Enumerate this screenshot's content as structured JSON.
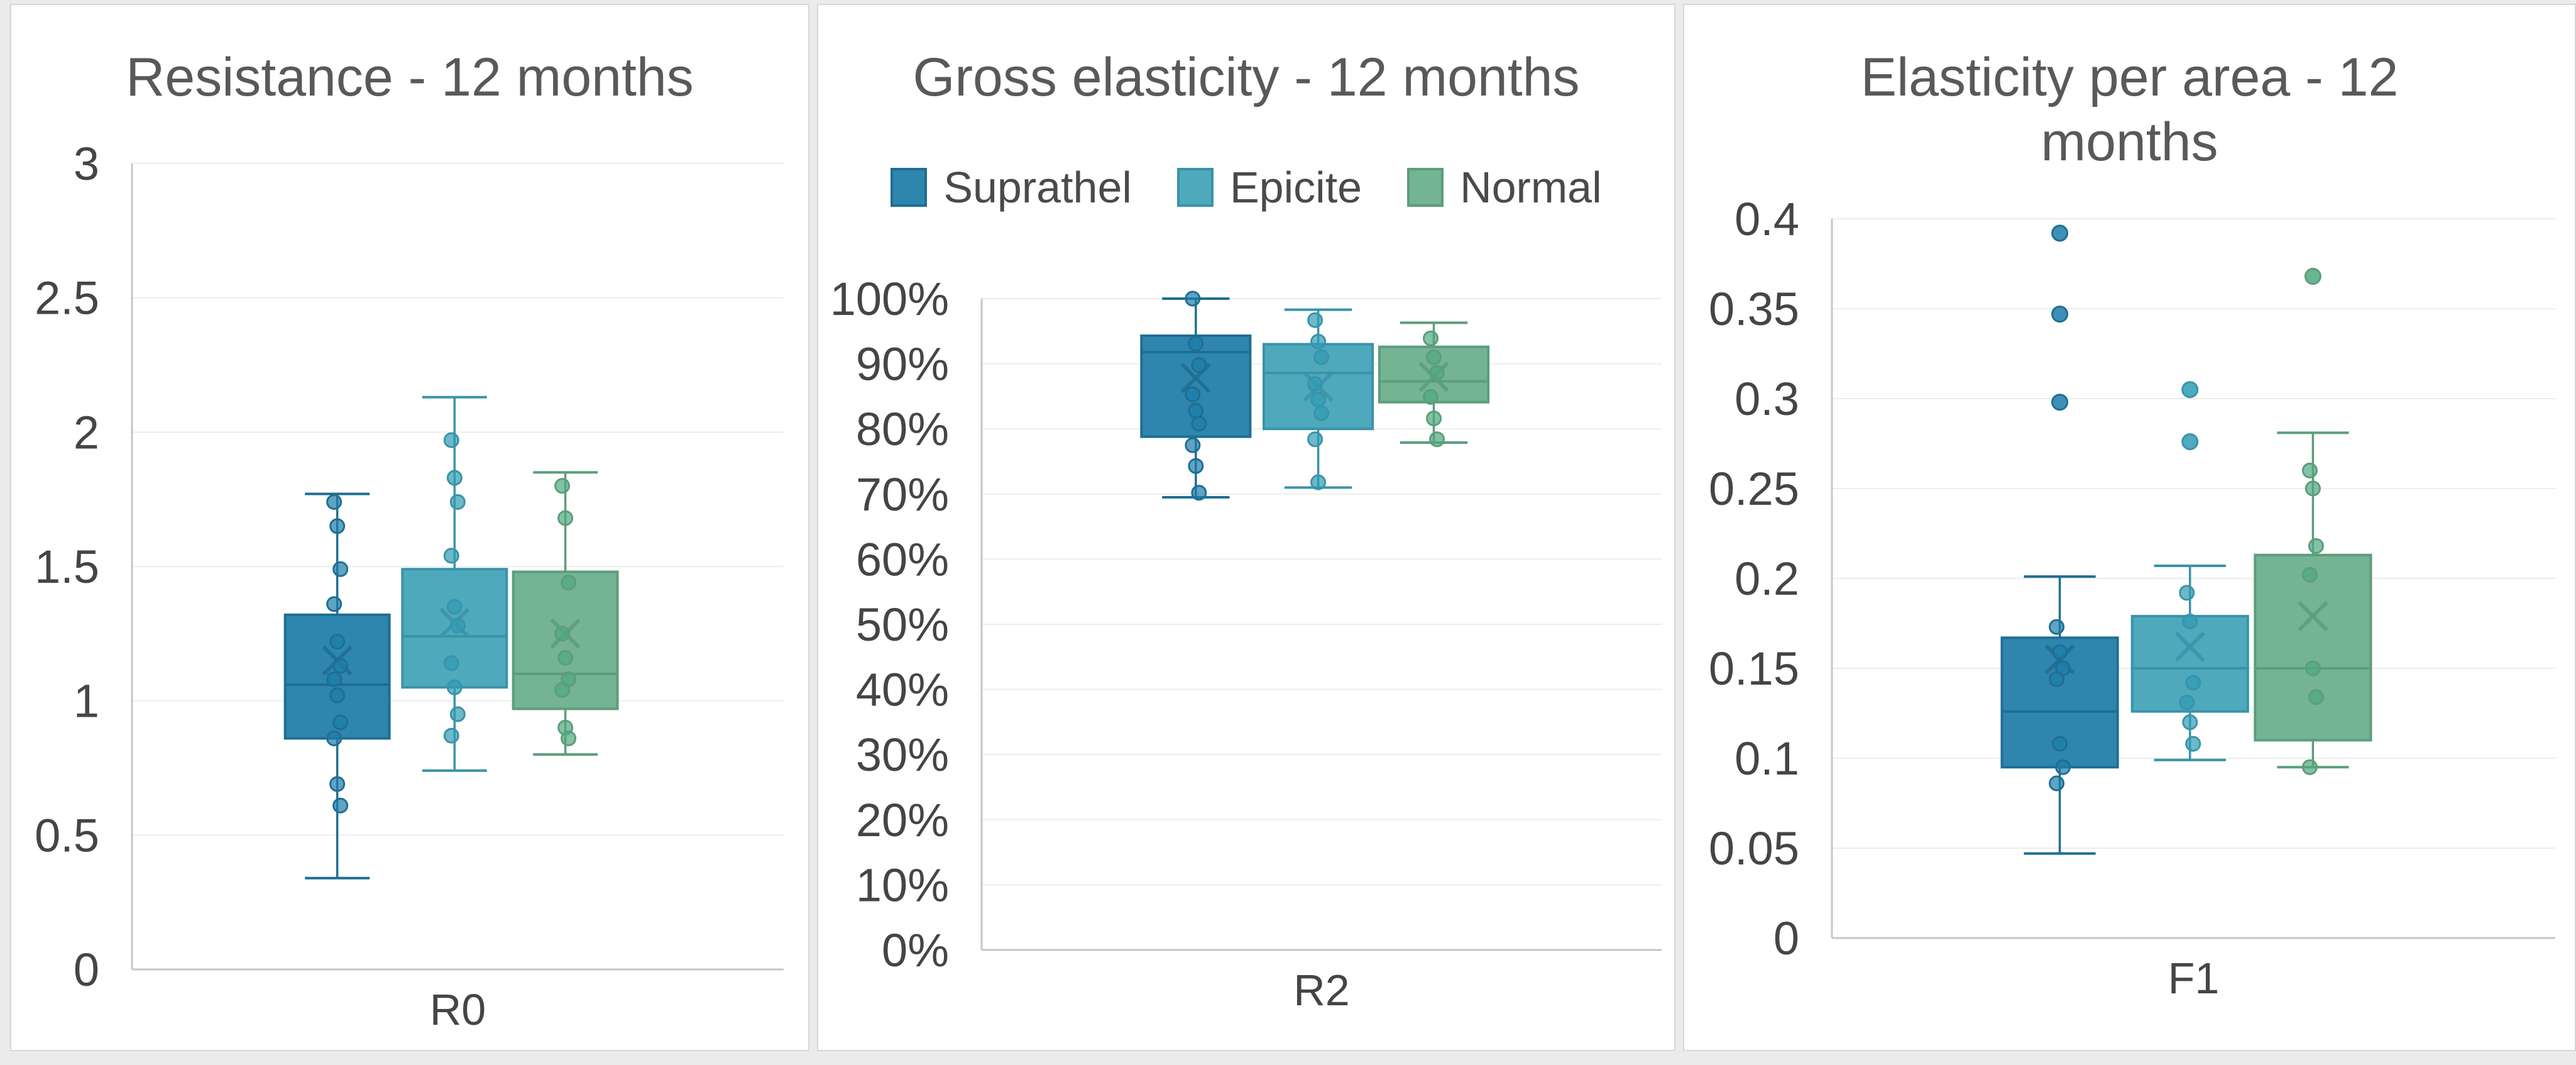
{
  "page": {
    "background": "#ebebeb",
    "panel_background": "#ffffff",
    "panel_border": "#d7d7d7",
    "grid_color": "#ededed",
    "axis_color": "#c6c6c6",
    "title_color": "#595959",
    "tick_color": "#454545"
  },
  "legend": {
    "position": "top-center",
    "items": [
      {
        "label": "Suprathel",
        "color": "#2e86ae",
        "border": "#1f6e93"
      },
      {
        "label": "Epicite",
        "color": "#4fa9bd",
        "border": "#3a93a9"
      },
      {
        "label": "Normal",
        "color": "#74b493",
        "border": "#5c9d7b"
      }
    ]
  },
  "chart_data": [
    {
      "type": "box",
      "title": "Resistance - 12 months",
      "xlabel": "R0",
      "ylim": [
        0,
        3
      ],
      "grid": true,
      "legend_visible": false,
      "centers_frac": [
        0.315,
        0.495,
        0.665
      ],
      "box_width_frac": 0.16,
      "yticks": [
        {
          "v": 0,
          "label": "0"
        },
        {
          "v": 0.5,
          "label": "0.5"
        },
        {
          "v": 1,
          "label": "1"
        },
        {
          "v": 1.5,
          "label": "1.5"
        },
        {
          "v": 2,
          "label": "2"
        },
        {
          "v": 2.5,
          "label": "2.5"
        },
        {
          "v": 3,
          "label": "3"
        }
      ],
      "series": [
        {
          "name": "Suprathel",
          "fill": "#2e86ae",
          "stroke": "#1f6e93",
          "point": "#1d7ca9",
          "whisker_low": 0.34,
          "q1": 0.86,
          "median": 1.06,
          "mean": 1.15,
          "q3": 1.32,
          "whisker_high": 1.77,
          "points": [
            1.74,
            1.65,
            1.49,
            1.36,
            1.22,
            1.13,
            1.08,
            1.02,
            0.92,
            0.86,
            0.69,
            0.61
          ],
          "outliers": []
        },
        {
          "name": "Epicite",
          "fill": "#4fa9bd",
          "stroke": "#3a93a9",
          "point": "#2f9bb4",
          "whisker_low": 0.74,
          "q1": 1.05,
          "median": 1.24,
          "mean": 1.29,
          "q3": 1.49,
          "whisker_high": 2.13,
          "points": [
            1.97,
            1.83,
            1.74,
            1.54,
            1.35,
            1.28,
            1.14,
            1.05,
            0.95,
            0.87
          ],
          "outliers": []
        },
        {
          "name": "Normal",
          "fill": "#74b493",
          "stroke": "#5c9d7b",
          "point": "#4ea87e",
          "whisker_low": 0.8,
          "q1": 0.97,
          "median": 1.1,
          "mean": 1.25,
          "q3": 1.48,
          "whisker_high": 1.85,
          "points": [
            1.8,
            1.68,
            1.44,
            1.25,
            1.16,
            1.08,
            1.04,
            0.9,
            0.86
          ],
          "outliers": []
        }
      ]
    },
    {
      "type": "box",
      "title": "Gross elasticity - 12 months",
      "xlabel": "R2",
      "ylim": [
        0,
        100
      ],
      "grid": true,
      "legend_visible": true,
      "centers_frac": [
        0.315,
        0.495,
        0.665
      ],
      "box_width_frac": 0.16,
      "yticks": [
        {
          "v": 0,
          "label": "0%"
        },
        {
          "v": 10,
          "label": "10%"
        },
        {
          "v": 20,
          "label": "20%"
        },
        {
          "v": 30,
          "label": "30%"
        },
        {
          "v": 40,
          "label": "40%"
        },
        {
          "v": 50,
          "label": "50%"
        },
        {
          "v": 60,
          "label": "60%"
        },
        {
          "v": 70,
          "label": "70%"
        },
        {
          "v": 80,
          "label": "80%"
        },
        {
          "v": 90,
          "label": "90%"
        },
        {
          "v": 100,
          "label": "100%"
        }
      ],
      "series": [
        {
          "name": "Suprathel",
          "fill": "#2e86ae",
          "stroke": "#1f6e93",
          "point": "#1d7ca9",
          "whisker_low": 69.5,
          "q1": 78.8,
          "median": 91.8,
          "mean": 87.8,
          "q3": 94.3,
          "whisker_high": 100,
          "points": [
            100,
            93.1,
            89.8,
            85.3,
            82.8,
            80.8,
            77.5,
            74.3,
            70.2
          ],
          "outliers": []
        },
        {
          "name": "Epicite",
          "fill": "#4fa9bd",
          "stroke": "#3a93a9",
          "point": "#2f9bb4",
          "whisker_low": 71,
          "q1": 80,
          "median": 88.6,
          "mean": 86.5,
          "q3": 93,
          "whisker_high": 98.3,
          "points": [
            96.7,
            93.4,
            91,
            86.9,
            84.5,
            82.4,
            78.4,
            71.8
          ],
          "outliers": []
        },
        {
          "name": "Normal",
          "fill": "#74b493",
          "stroke": "#5c9d7b",
          "point": "#4ea87e",
          "whisker_low": 77.9,
          "q1": 84.1,
          "median": 87.3,
          "mean": 88,
          "q3": 92.6,
          "whisker_high": 96.3,
          "points": [
            93.9,
            91,
            88.6,
            84.9,
            81.6,
            78.4
          ],
          "outliers": []
        }
      ]
    },
    {
      "type": "box",
      "title": "Elasticity per area - 12 months",
      "xlabel": "F1",
      "ylim": [
        0,
        0.4
      ],
      "grid": true,
      "legend_visible": false,
      "centers_frac": [
        0.315,
        0.495,
        0.665
      ],
      "box_width_frac": 0.16,
      "yticks": [
        {
          "v": 0,
          "label": "0"
        },
        {
          "v": 0.05,
          "label": "0.05"
        },
        {
          "v": 0.1,
          "label": "0.1"
        },
        {
          "v": 0.15,
          "label": "0.15"
        },
        {
          "v": 0.2,
          "label": "0.2"
        },
        {
          "v": 0.25,
          "label": "0.25"
        },
        {
          "v": 0.3,
          "label": "0.3"
        },
        {
          "v": 0.35,
          "label": "0.35"
        },
        {
          "v": 0.4,
          "label": "0.4"
        }
      ],
      "series": [
        {
          "name": "Suprathel",
          "fill": "#2e86ae",
          "stroke": "#1f6e93",
          "point": "#1d7ca9",
          "whisker_low": 0.047,
          "q1": 0.095,
          "median": 0.126,
          "mean": 0.155,
          "q3": 0.167,
          "whisker_high": 0.201,
          "points": [
            0.173,
            0.159,
            0.15,
            0.144,
            0.108,
            0.095,
            0.086
          ],
          "outliers": [
            0.392,
            0.347,
            0.298
          ]
        },
        {
          "name": "Epicite",
          "fill": "#4fa9bd",
          "stroke": "#3a93a9",
          "point": "#2f9bb4",
          "whisker_low": 0.099,
          "q1": 0.126,
          "median": 0.15,
          "mean": 0.162,
          "q3": 0.179,
          "whisker_high": 0.207,
          "points": [
            0.192,
            0.176,
            0.142,
            0.131,
            0.12,
            0.108
          ],
          "outliers": [
            0.305,
            0.276
          ]
        },
        {
          "name": "Normal",
          "fill": "#74b493",
          "stroke": "#5c9d7b",
          "point": "#4ea87e",
          "whisker_low": 0.095,
          "q1": 0.11,
          "median": 0.15,
          "mean": 0.179,
          "q3": 0.213,
          "whisker_high": 0.281,
          "points": [
            0.26,
            0.25,
            0.218,
            0.202,
            0.15,
            0.134,
            0.095
          ],
          "outliers": [
            0.368
          ]
        }
      ]
    }
  ]
}
